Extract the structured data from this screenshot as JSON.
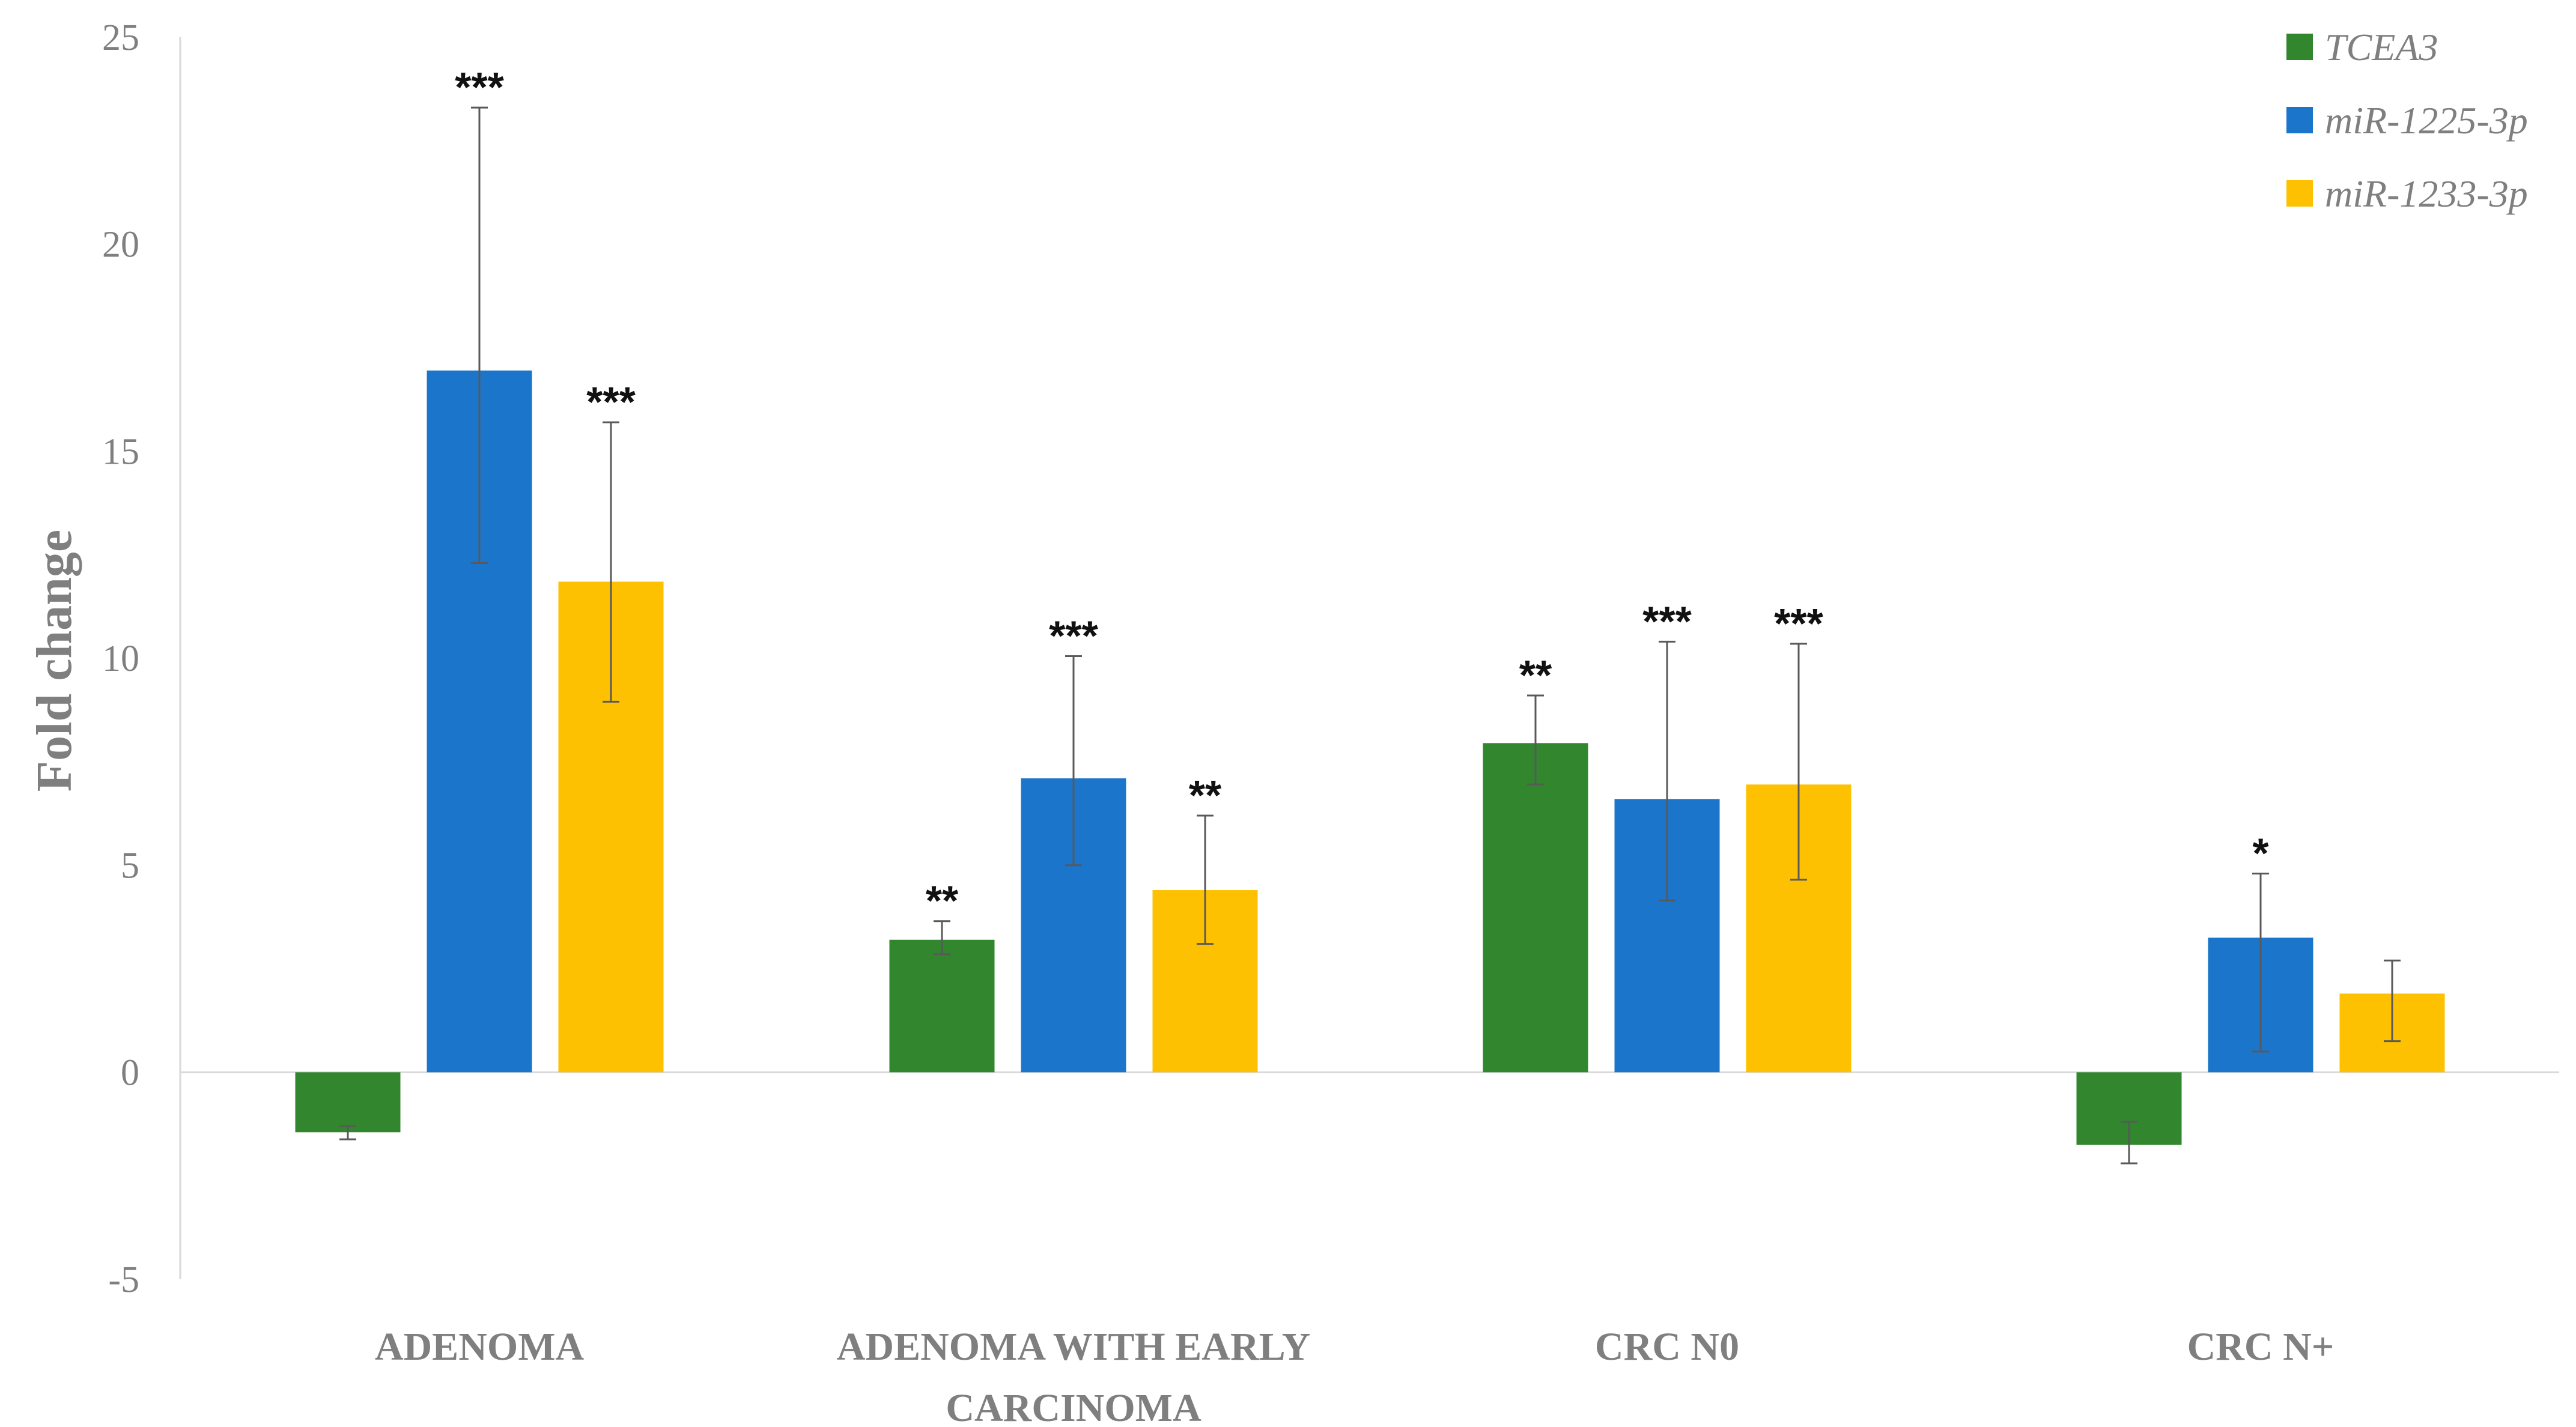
{
  "chart_data": {
    "type": "bar",
    "title": "",
    "xlabel": "",
    "ylabel": "Fold change",
    "ylim": [
      -5,
      25
    ],
    "yticks": [
      25,
      20,
      15,
      10,
      5,
      0,
      -5
    ],
    "grid": false,
    "legend_position": "top-right",
    "categories": [
      [
        "ADENOMA"
      ],
      [
        "ADENOMA WITH EARLY",
        "CARCINOMA"
      ],
      [
        "CRC N0"
      ],
      [
        "CRC N+"
      ]
    ],
    "series": [
      {
        "name": "TCEA3",
        "color": "#31862e",
        "values": [
          -1.45,
          3.2,
          7.95,
          -1.75
        ],
        "err_low": [
          -1.62,
          2.85,
          6.95,
          -2.2
        ],
        "err_high": [
          -1.3,
          3.65,
          9.1,
          -1.2
        ],
        "sig": [
          "",
          "**",
          "**",
          ""
        ]
      },
      {
        "name": "miR-1225-3p",
        "color": "#1b75ca",
        "values": [
          16.95,
          7.1,
          6.6,
          3.25
        ],
        "err_low": [
          12.3,
          5.0,
          4.15,
          0.5
        ],
        "err_high": [
          23.3,
          10.05,
          10.4,
          4.8
        ],
        "sig": [
          "***",
          "***",
          "***",
          "*"
        ]
      },
      {
        "name": "miR-1233-3p",
        "color": "#fec102",
        "values": [
          11.85,
          4.4,
          6.95,
          1.9
        ],
        "err_low": [
          8.95,
          3.1,
          4.65,
          0.75
        ],
        "err_high": [
          15.7,
          6.2,
          10.35,
          2.7
        ],
        "sig": [
          "***",
          "**",
          "***",
          ""
        ]
      }
    ]
  }
}
